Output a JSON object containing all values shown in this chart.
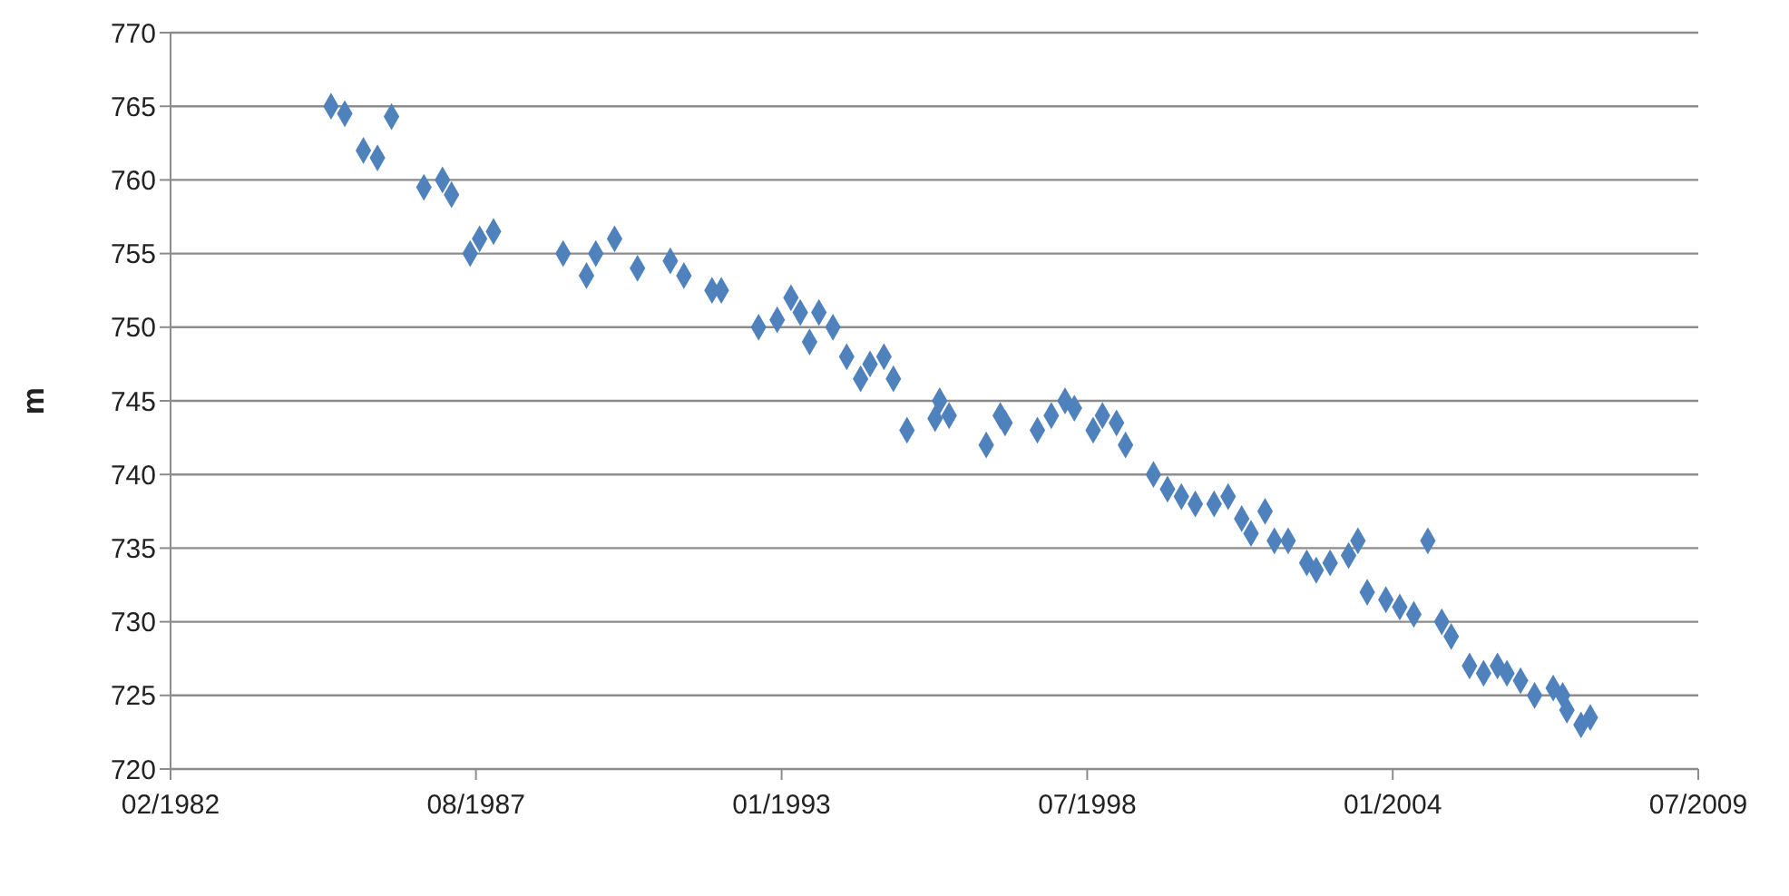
{
  "chart_data": {
    "type": "scatter",
    "ylabel": "m",
    "marker": "diamond",
    "grid": "y",
    "legend": false,
    "xlim": [
      "1982-02-15",
      "2009-07-08"
    ],
    "xticks": [
      {
        "value": "1982-02-15",
        "label": "02/1982"
      },
      {
        "value": "1987-08-08",
        "label": "08/1987"
      },
      {
        "value": "1993-01-30",
        "label": "01/1993"
      },
      {
        "value": "1998-07-24",
        "label": "07/1998"
      },
      {
        "value": "2004-01-15",
        "label": "01/2004"
      },
      {
        "value": "2009-07-08",
        "label": "07/2009"
      }
    ],
    "ylim": [
      720,
      770
    ],
    "yticks": [
      720,
      725,
      730,
      735,
      740,
      745,
      750,
      755,
      760,
      765,
      770
    ],
    "series": [
      {
        "color": "#4f81bd",
        "x": [
          "1985-01",
          "1985-04",
          "1985-08",
          "1985-11",
          "1986-02",
          "1986-09",
          "1987-01",
          "1987-03",
          "1987-07",
          "1987-09",
          "1987-12",
          "1989-03",
          "1989-08",
          "1989-10",
          "1990-02",
          "1990-07",
          "1991-02",
          "1991-05",
          "1991-11",
          "1992-01",
          "1992-09",
          "1993-01",
          "1993-04",
          "1993-06",
          "1993-08",
          "1993-10",
          "1994-01",
          "1994-04",
          "1994-07",
          "1994-09",
          "1994-12",
          "1995-02",
          "1995-05",
          "1995-11",
          "1995-12",
          "1996-02",
          "1996-10",
          "1997-01",
          "1997-02",
          "1997-09",
          "1997-12",
          "1998-03",
          "1998-05",
          "1998-09",
          "1998-11",
          "1999-02",
          "1999-04",
          "1999-10",
          "2000-01",
          "2000-04",
          "2000-07",
          "2000-11",
          "2001-02",
          "2001-05",
          "2001-07",
          "2001-10",
          "2001-12",
          "2002-03",
          "2002-07",
          "2002-09",
          "2002-12",
          "2003-04",
          "2003-06",
          "2003-08",
          "2003-12",
          "2004-03",
          "2004-06",
          "2004-09",
          "2004-12",
          "2005-02",
          "2005-06",
          "2005-09",
          "2005-12",
          "2006-02",
          "2006-05",
          "2006-08",
          "2006-12",
          "2007-02",
          "2007-03",
          "2007-06",
          "2007-08"
        ],
        "values": [
          765,
          764.5,
          762,
          761.5,
          764.3,
          759.5,
          760,
          759,
          755,
          756,
          756.5,
          755,
          753.5,
          755,
          756,
          754,
          754.5,
          753.5,
          752.5,
          752.5,
          750,
          750.5,
          752,
          751,
          749,
          751,
          750,
          748,
          746.5,
          747.5,
          748,
          746.5,
          743,
          743.8,
          745,
          744,
          742,
          744,
          743.5,
          743,
          744,
          745,
          744.5,
          743,
          744,
          743.5,
          742,
          740,
          739,
          738.5,
          738,
          738,
          738.5,
          737,
          736,
          737.5,
          735.5,
          735.5,
          734,
          733.5,
          734,
          734.5,
          735.5,
          732,
          731.5,
          731,
          730.5,
          735.5,
          730,
          729,
          727,
          726.5,
          727,
          726.5,
          726,
          725,
          725.5,
          725,
          724,
          723,
          723.5
        ]
      }
    ]
  }
}
